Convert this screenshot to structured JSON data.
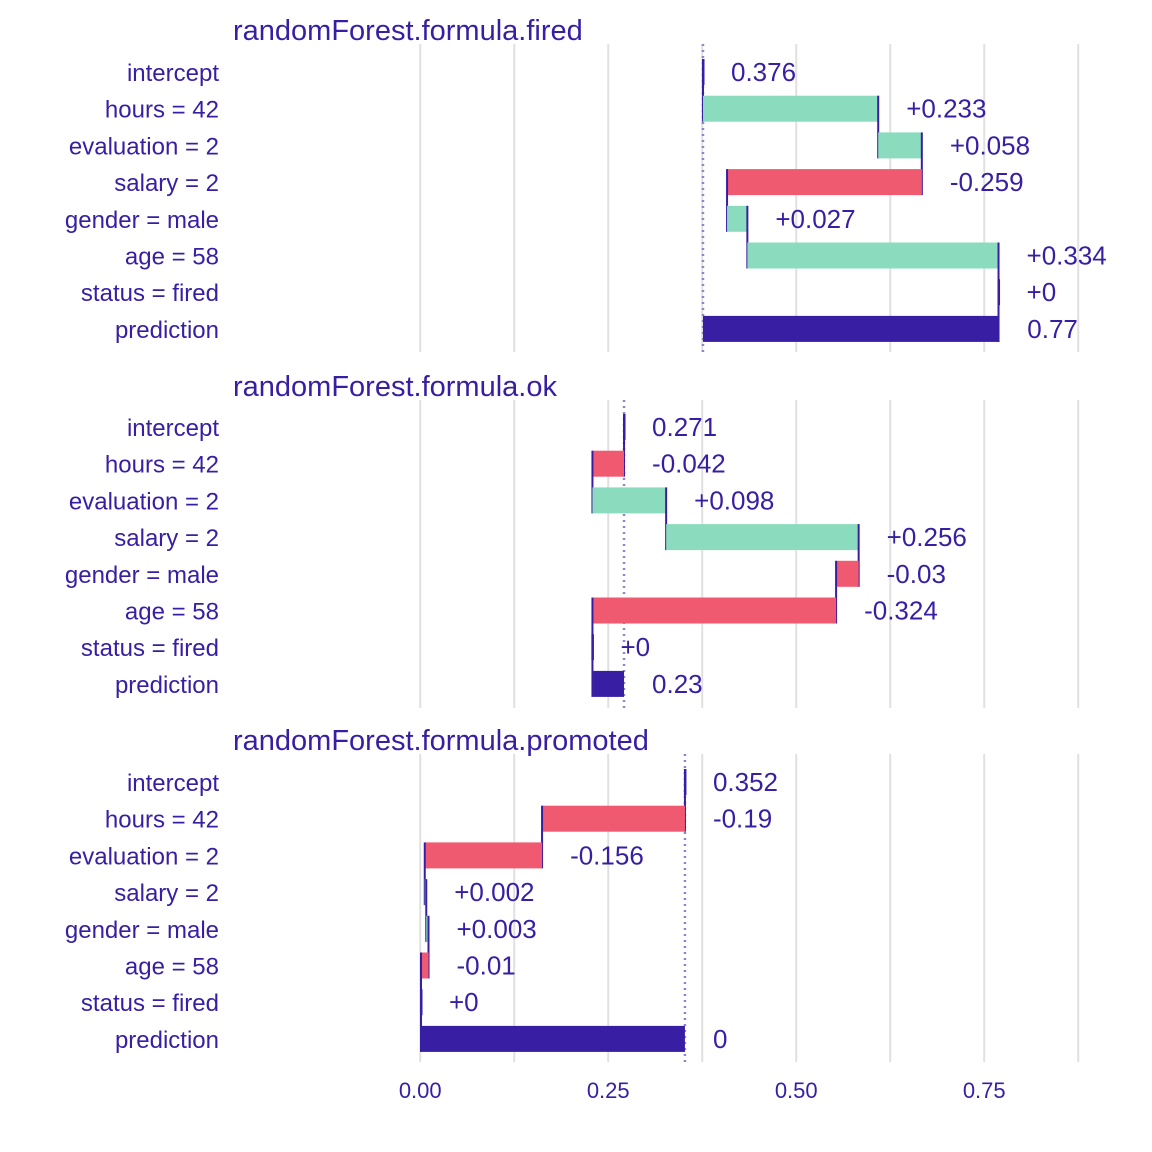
{
  "colors": {
    "text": "#371ea3",
    "positive": "#8bdcbe",
    "negative": "#f05a71",
    "prediction": "#371ea3",
    "grid": "#e0e0e0",
    "background": "#ffffff"
  },
  "chart_data": {
    "type": "bar",
    "subtype": "waterfall (break down)",
    "xlim": [
      -0.245,
      0.88
    ],
    "x_ticks": [
      0.0,
      0.25,
      0.5,
      0.75
    ],
    "x_tick_labels": [
      "0.00",
      "0.25",
      "0.50",
      "0.75"
    ],
    "grid": true,
    "categories": [
      "intercept",
      "hours = 42",
      "evaluation = 2",
      "salary = 2",
      "gender = male",
      "age = 58",
      "status = fired",
      "prediction"
    ],
    "panels": [
      {
        "title": "randomForest.formula.fired",
        "intercept": 0.376,
        "contributions": [
          0.233,
          0.058,
          -0.259,
          0.027,
          0.334,
          0
        ],
        "prediction": 0.77,
        "labels": [
          "0.376",
          "+0.233",
          "+0.058",
          "-0.259",
          "+0.027",
          "+0.334",
          "+0",
          "0.77"
        ]
      },
      {
        "title": "randomForest.formula.ok",
        "intercept": 0.271,
        "contributions": [
          -0.042,
          0.098,
          0.256,
          -0.03,
          -0.324,
          0
        ],
        "prediction": 0.23,
        "labels": [
          "0.271",
          "-0.042",
          "+0.098",
          "+0.256",
          "-0.03",
          "-0.324",
          "+0",
          "0.23"
        ]
      },
      {
        "title": "randomForest.formula.promoted",
        "intercept": 0.352,
        "contributions": [
          -0.19,
          -0.156,
          0.002,
          0.003,
          -0.01,
          0
        ],
        "prediction": 0,
        "labels": [
          "0.352",
          "-0.19",
          "-0.156",
          "+0.002",
          "+0.003",
          "-0.01",
          "+0",
          "0"
        ]
      }
    ]
  }
}
